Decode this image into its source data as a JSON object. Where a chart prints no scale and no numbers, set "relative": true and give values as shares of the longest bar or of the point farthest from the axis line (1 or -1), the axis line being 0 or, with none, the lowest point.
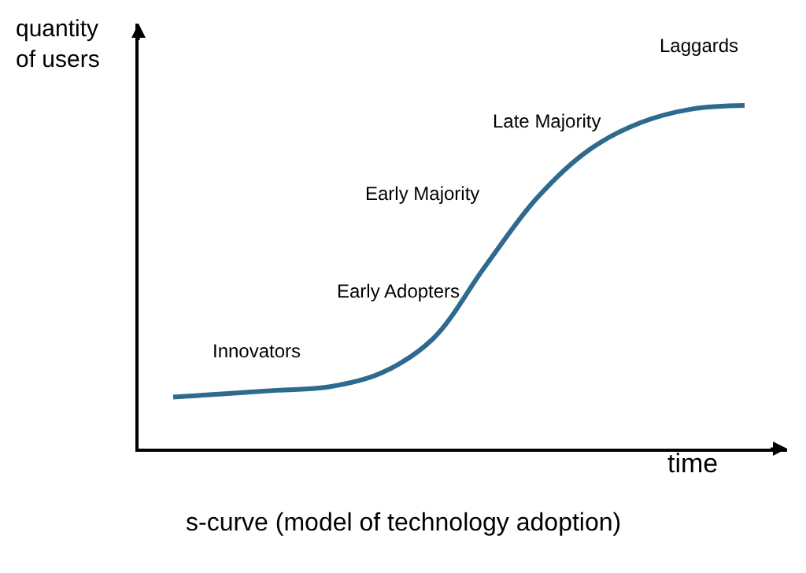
{
  "chart_data": {
    "type": "line",
    "relative": true,
    "title": "s-curve (model of technology adoption)",
    "xlabel": "time",
    "ylabel": "quantity of users",
    "categories": [
      null,
      null,
      null,
      null,
      null,
      null,
      null,
      null,
      null,
      null,
      null,
      null
    ],
    "series": [
      {
        "color": "#2e6a8e",
        "values": [
          0.15,
          0.16,
          0.17,
          0.18,
          0.22,
          0.32,
          0.53,
          0.73,
          0.87,
          0.95,
          0.99,
          1.0
        ]
      }
    ],
    "annotations": [
      "Innovators",
      "Early Adopters",
      "Early Majority",
      "Late Majority",
      "Laggards"
    ],
    "marker": "none",
    "line_style": "solid"
  }
}
